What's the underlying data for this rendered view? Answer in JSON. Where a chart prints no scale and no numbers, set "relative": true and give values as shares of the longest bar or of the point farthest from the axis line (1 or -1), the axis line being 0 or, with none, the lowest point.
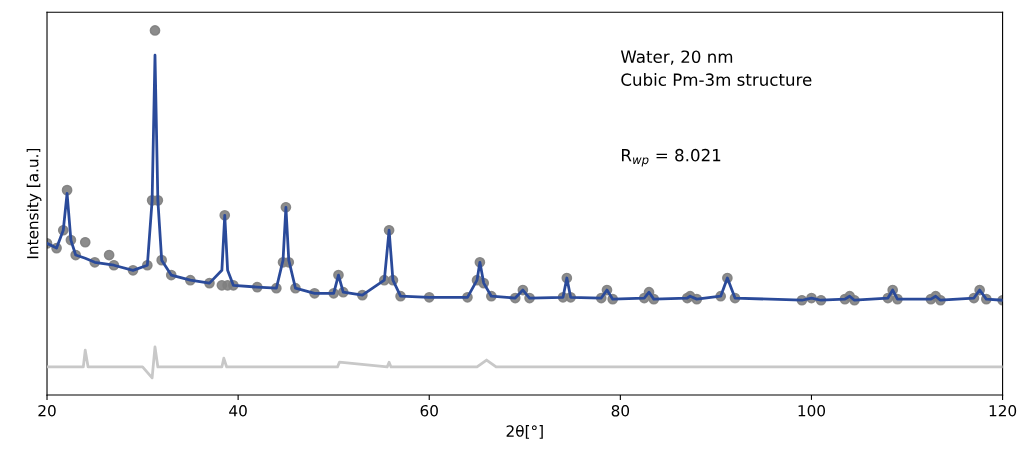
{
  "chart_data": {
    "type": "line",
    "relative": true,
    "xlabel": "2θ[°]",
    "ylabel": "Intensity [a.u.]",
    "xlim": [
      20,
      120
    ],
    "xticks": [
      20,
      40,
      60,
      80,
      100,
      120
    ],
    "grid": false,
    "legend": false,
    "annotations": [
      "Water, 20 nm",
      "Cubic Pm-3m structure",
      "R$_{wp}$ = 8.021"
    ],
    "series": [
      {
        "type": "scatter",
        "marker": "circle",
        "color": "#808080",
        "x": [
          20,
          21,
          21.7,
          22.1,
          22.5,
          23,
          24,
          25,
          26.5,
          27,
          29,
          30.5,
          31.0,
          31.3,
          31.6,
          32,
          33,
          35,
          37,
          38.3,
          38.6,
          38.9,
          39.5,
          42,
          44,
          44.7,
          45.0,
          45.3,
          46,
          48,
          50,
          50.5,
          51,
          53,
          55.3,
          55.8,
          56.2,
          57,
          60,
          64,
          65.0,
          65.3,
          65.7,
          66.5,
          69,
          69.8,
          70.5,
          74,
          74.4,
          74.8,
          78,
          78.6,
          79.2,
          82.5,
          83,
          83.5,
          87,
          87.3,
          88,
          90.5,
          91.2,
          92,
          99,
          100,
          101,
          103.5,
          104,
          104.5,
          108,
          108.5,
          109,
          112.5,
          113,
          113.5,
          117,
          117.6,
          118.3,
          120
        ],
        "values": [
          0.416,
          0.403,
          0.452,
          0.562,
          0.425,
          0.384,
          0.419,
          0.364,
          0.384,
          0.356,
          0.342,
          0.356,
          0.534,
          1.0,
          0.534,
          0.37,
          0.329,
          0.315,
          0.307,
          0.301,
          0.493,
          0.301,
          0.301,
          0.296,
          0.293,
          0.364,
          0.515,
          0.364,
          0.293,
          0.279,
          0.279,
          0.329,
          0.282,
          0.274,
          0.315,
          0.452,
          0.315,
          0.271,
          0.268,
          0.268,
          0.315,
          0.364,
          0.307,
          0.271,
          0.266,
          0.288,
          0.266,
          0.268,
          0.321,
          0.268,
          0.266,
          0.288,
          0.263,
          0.266,
          0.282,
          0.263,
          0.266,
          0.271,
          0.263,
          0.271,
          0.321,
          0.266,
          0.26,
          0.266,
          0.26,
          0.263,
          0.271,
          0.26,
          0.266,
          0.288,
          0.263,
          0.263,
          0.271,
          0.26,
          0.266,
          0.288,
          0.263,
          0.26
        ]
      },
      {
        "marker": "none",
        "color": "#2a4a9a",
        "x": [
          20,
          21,
          21.7,
          22.1,
          22.5,
          23,
          24,
          25,
          27,
          29,
          30.5,
          31.0,
          31.3,
          31.6,
          32,
          33,
          35,
          37,
          38.3,
          38.6,
          38.9,
          39.5,
          42,
          44,
          44.7,
          45.0,
          45.3,
          46,
          48,
          50,
          50.5,
          51,
          53,
          55.3,
          55.8,
          56.2,
          57,
          60,
          64,
          65.0,
          65.3,
          65.7,
          66.5,
          69,
          69.8,
          70.5,
          74,
          74.4,
          74.8,
          78,
          78.6,
          79.2,
          82.5,
          83,
          83.5,
          87,
          87.3,
          88,
          90.5,
          91.2,
          92,
          99,
          100,
          101,
          103.5,
          104,
          104.5,
          108,
          108.5,
          109,
          112.5,
          113,
          113.5,
          117,
          117.6,
          118.3,
          120
        ],
        "values": [
          0.416,
          0.403,
          0.452,
          0.553,
          0.425,
          0.384,
          0.375,
          0.364,
          0.356,
          0.342,
          0.356,
          0.534,
          0.932,
          0.534,
          0.37,
          0.329,
          0.315,
          0.307,
          0.342,
          0.493,
          0.342,
          0.301,
          0.296,
          0.293,
          0.37,
          0.515,
          0.37,
          0.293,
          0.279,
          0.279,
          0.329,
          0.282,
          0.274,
          0.315,
          0.452,
          0.315,
          0.271,
          0.268,
          0.268,
          0.315,
          0.364,
          0.307,
          0.271,
          0.266,
          0.288,
          0.266,
          0.268,
          0.321,
          0.268,
          0.266,
          0.288,
          0.263,
          0.266,
          0.282,
          0.263,
          0.266,
          0.271,
          0.263,
          0.271,
          0.321,
          0.266,
          0.26,
          0.266,
          0.26,
          0.263,
          0.271,
          0.26,
          0.266,
          0.288,
          0.263,
          0.263,
          0.271,
          0.26,
          0.266,
          0.288,
          0.263,
          0.26
        ]
      },
      {
        "marker": "none",
        "color": "#c8c8c8",
        "x": [
          20,
          23.8,
          24,
          24.3,
          30,
          31.0,
          31.3,
          31.6,
          35,
          38.3,
          38.5,
          38.8,
          45,
          50.4,
          50.6,
          55.6,
          55.8,
          56,
          65,
          66,
          67,
          70,
          100,
          120
        ],
        "values": [
          0.077,
          0.077,
          0.123,
          0.077,
          0.077,
          0.047,
          0.132,
          0.077,
          0.077,
          0.077,
          0.101,
          0.077,
          0.077,
          0.077,
          0.09,
          0.077,
          0.09,
          0.077,
          0.077,
          0.096,
          0.077,
          0.077,
          0.077,
          0.077
        ]
      }
    ]
  }
}
